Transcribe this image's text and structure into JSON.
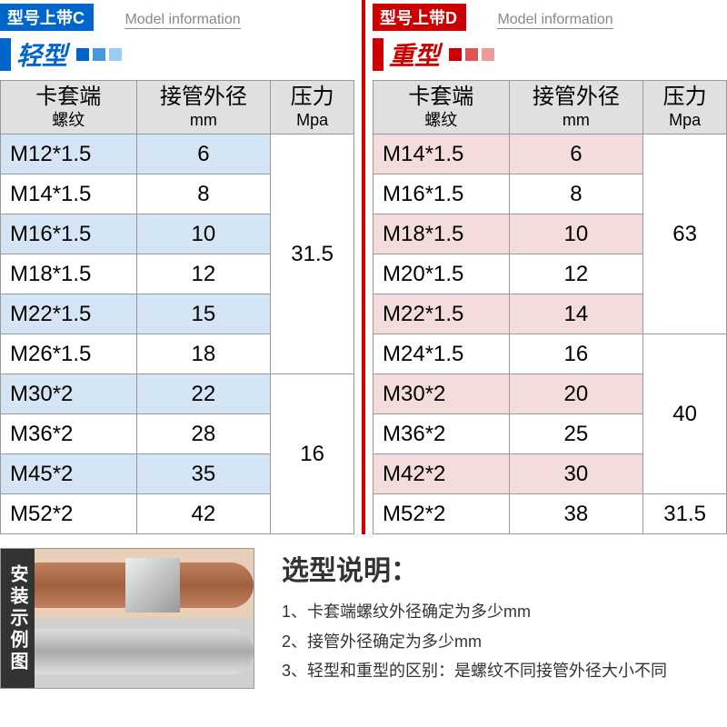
{
  "colors": {
    "blue_primary": "#0066cc",
    "red_primary": "#cc0000",
    "blue_highlight": "#d4e6f5",
    "red_highlight": "#f5dcdc",
    "header_bg": "#e0e0e0",
    "border": "#999999",
    "dot_blue": [
      "#0066cc",
      "#4499dd",
      "#99ccee"
    ],
    "dot_red": [
      "#cc0000",
      "#dd5555",
      "#ee9999"
    ]
  },
  "left": {
    "badge": "型号上带C",
    "model_info": "Model information",
    "type_label": "轻型",
    "columns": [
      {
        "main": "卡套端",
        "sub": "螺纹"
      },
      {
        "main": "接管外径",
        "sub": "mm"
      },
      {
        "main": "压力",
        "sub": "Mpa"
      }
    ],
    "rows": [
      {
        "thread": "M12*1.5",
        "od": "6",
        "hl": true,
        "p": "31.5",
        "pspan": 6
      },
      {
        "thread": "M14*1.5",
        "od": "8",
        "hl": false
      },
      {
        "thread": "M16*1.5",
        "od": "10",
        "hl": true
      },
      {
        "thread": "M18*1.5",
        "od": "12",
        "hl": false
      },
      {
        "thread": "M22*1.5",
        "od": "15",
        "hl": true
      },
      {
        "thread": "M26*1.5",
        "od": "18",
        "hl": false
      },
      {
        "thread": "M30*2",
        "od": "22",
        "hl": true,
        "p": "16",
        "pspan": 4
      },
      {
        "thread": "M36*2",
        "od": "28",
        "hl": false
      },
      {
        "thread": "M45*2",
        "od": "35",
        "hl": true
      },
      {
        "thread": "M52*2",
        "od": "42",
        "hl": false
      }
    ]
  },
  "right": {
    "badge": "型号上带D",
    "model_info": "Model information",
    "type_label": "重型",
    "columns": [
      {
        "main": "卡套端",
        "sub": "螺纹"
      },
      {
        "main": "接管外径",
        "sub": "mm"
      },
      {
        "main": "压力",
        "sub": "Mpa"
      }
    ],
    "rows": [
      {
        "thread": "M14*1.5",
        "od": "6",
        "hl": true,
        "p": "63",
        "pspan": 5
      },
      {
        "thread": "M16*1.5",
        "od": "8",
        "hl": false
      },
      {
        "thread": "M18*1.5",
        "od": "10",
        "hl": true
      },
      {
        "thread": "M20*1.5",
        "od": "12",
        "hl": false
      },
      {
        "thread": "M22*1.5",
        "od": "14",
        "hl": true
      },
      {
        "thread": "M24*1.5",
        "od": "16",
        "hl": false,
        "p": "40",
        "pspan": 4
      },
      {
        "thread": "M30*2",
        "od": "20",
        "hl": true
      },
      {
        "thread": "M36*2",
        "od": "25",
        "hl": false
      },
      {
        "thread": "M42*2",
        "od": "30",
        "hl": true
      },
      {
        "thread": "M52*2",
        "od": "38",
        "hl": false,
        "p": "31.5",
        "pspan": 1
      }
    ]
  },
  "example_label": "安装示例图",
  "notes": {
    "title": "选型说明：",
    "lines": [
      "1、卡套端螺纹外径确定为多少mm",
      "2、接管外径确定为多少mm",
      "3、轻型和重型的区别：是螺纹不同接管外径大小不同"
    ]
  }
}
